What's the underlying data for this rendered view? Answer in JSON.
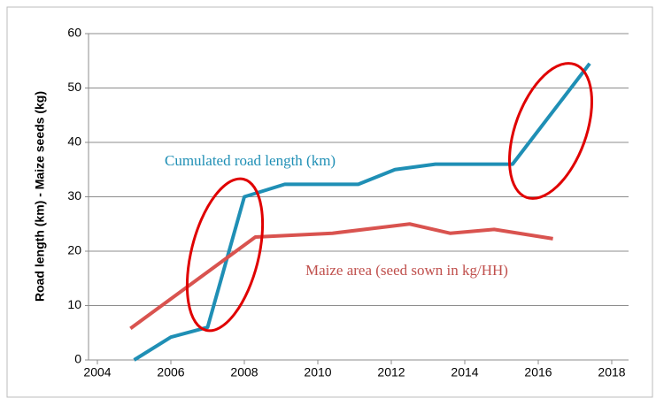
{
  "chart_data": {
    "type": "line",
    "y_label": "Road length (km) - Maize seeds (kg)",
    "xlim": [
      2004,
      2018
    ],
    "xticks": [
      2004,
      2006,
      2008,
      2010,
      2012,
      2014,
      2016,
      2018
    ],
    "ylim": [
      0,
      60
    ],
    "yticks": [
      0,
      10,
      20,
      30,
      40,
      50,
      60
    ],
    "grid": true,
    "series": [
      {
        "name": "Cumulated road length (km)",
        "color": "#1f8fb5",
        "x": [
          2005,
          2006,
          2007,
          2008,
          2009.1,
          2011.1,
          2012.1,
          2013.2,
          2015.3,
          2017.4
        ],
        "values": [
          0,
          4.2,
          6,
          30,
          32.3,
          32.3,
          35,
          36,
          36,
          54.5
        ]
      },
      {
        "name": "Maize area (seed sown in kg/HH)",
        "color": "#d9534f",
        "x": [
          2004.9,
          2008.3,
          2010.4,
          2012.5,
          2013.6,
          2014.8,
          2016.4
        ],
        "values": [
          5.8,
          22.6,
          23.3,
          25,
          23.3,
          24,
          22.3
        ]
      }
    ]
  }
}
